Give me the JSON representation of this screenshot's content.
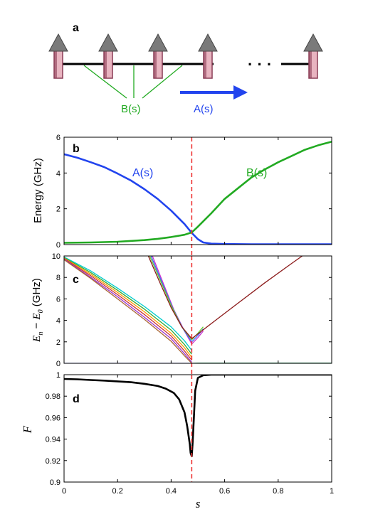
{
  "panels": {
    "a": {
      "label": "a",
      "coupling_label": "B(s)",
      "field_label": "A(s)",
      "ellipsis": "· · ·",
      "colors": {
        "coupling": "#22aa22",
        "field": "#2244ee",
        "arrow_body": "#e8b4c0",
        "arrow_shade": "#8a3c55"
      }
    }
  },
  "chart_data": [
    {
      "panel": "b",
      "type": "line",
      "title": "",
      "xlabel": "",
      "ylabel": "Energy (GHz)",
      "xlim": [
        0,
        1
      ],
      "ylim": [
        0,
        6
      ],
      "x_ticks": [],
      "y_ticks": [
        0,
        2,
        4,
        6
      ],
      "vline": {
        "x": 0.477,
        "color": "#ee3333",
        "style": "dashed"
      },
      "annotations": [
        {
          "text": "A(s)",
          "color": "#2244ee"
        },
        {
          "text": "B(s)",
          "color": "#22aa22"
        }
      ],
      "series": [
        {
          "name": "A(s)",
          "color": "#2244ee",
          "x": [
            0,
            0.05,
            0.1,
            0.15,
            0.2,
            0.25,
            0.3,
            0.35,
            0.4,
            0.45,
            0.477,
            0.5,
            0.52,
            0.55,
            0.6,
            0.7,
            0.8,
            0.9,
            1.0
          ],
          "y": [
            5.05,
            4.85,
            4.6,
            4.33,
            3.97,
            3.58,
            3.1,
            2.55,
            1.9,
            1.15,
            0.65,
            0.3,
            0.12,
            0.05,
            0.03,
            0.02,
            0.02,
            0.02,
            0.02
          ]
        },
        {
          "name": "B(s)",
          "color": "#22aa22",
          "x": [
            0,
            0.1,
            0.2,
            0.3,
            0.35,
            0.4,
            0.45,
            0.477,
            0.5,
            0.55,
            0.6,
            0.65,
            0.7,
            0.75,
            0.8,
            0.85,
            0.9,
            0.95,
            1.0
          ],
          "y": [
            0.1,
            0.12,
            0.16,
            0.25,
            0.32,
            0.42,
            0.55,
            0.68,
            1.0,
            1.75,
            2.55,
            3.15,
            3.75,
            4.2,
            4.6,
            4.95,
            5.3,
            5.55,
            5.75
          ]
        }
      ]
    },
    {
      "panel": "c",
      "type": "line",
      "title": "",
      "xlabel": "",
      "ylabel": "E_n − E_0 (GHz)",
      "ylabel_parts": {
        "E1": "E",
        "sub1": "n",
        "minus": " − ",
        "E2": "E",
        "sub2": "0",
        "unit": "(GHz)"
      },
      "xlim": [
        0,
        1
      ],
      "ylim": [
        0,
        10
      ],
      "x_ticks": [],
      "y_ticks": [
        0,
        2,
        4,
        6,
        8,
        10
      ],
      "vline": {
        "x": 0.477,
        "color": "#ee3333",
        "style": "dashed"
      },
      "series": [
        {
          "color": "#00cccc",
          "x": [
            0,
            0.1,
            0.2,
            0.3,
            0.4,
            0.45,
            0.477
          ],
          "y": [
            9.9,
            8.6,
            7.0,
            5.3,
            3.4,
            2.1,
            1.2
          ]
        },
        {
          "color": "#33aa33",
          "x": [
            0,
            0.1,
            0.2,
            0.3,
            0.4,
            0.45,
            0.477
          ],
          "y": [
            9.85,
            8.45,
            6.8,
            5.05,
            3.1,
            1.75,
            0.85
          ]
        },
        {
          "color": "#ff9900",
          "x": [
            0,
            0.1,
            0.2,
            0.3,
            0.4,
            0.45,
            0.477
          ],
          "y": [
            9.8,
            8.3,
            6.6,
            4.8,
            2.8,
            1.45,
            0.55
          ]
        },
        {
          "color": "#cc3333",
          "x": [
            0,
            0.1,
            0.2,
            0.3,
            0.4,
            0.45,
            0.477
          ],
          "y": [
            9.75,
            8.15,
            6.4,
            4.55,
            2.55,
            1.15,
            0.3
          ]
        },
        {
          "color": "#9933cc",
          "x": [
            0,
            0.1,
            0.2,
            0.3,
            0.4,
            0.45,
            0.477
          ],
          "y": [
            9.7,
            8.0,
            6.2,
            4.3,
            2.3,
            0.9,
            0.1
          ]
        },
        {
          "color": "#aa6633",
          "x": [
            0,
            0.1,
            0.2,
            0.3,
            0.4,
            0.45,
            0.477
          ],
          "y": [
            9.65,
            7.9,
            6.0,
            4.1,
            2.05,
            0.7,
            0.0
          ]
        },
        {
          "color": "#cc33cc",
          "x": [
            0.33,
            0.37,
            0.41,
            0.45,
            0.477,
            0.5,
            0.52
          ],
          "y": [
            10,
            7.5,
            5.0,
            3.0,
            1.8,
            2.4,
            3.0
          ]
        },
        {
          "color": "#3366ff",
          "x": [
            0.325,
            0.365,
            0.405,
            0.445,
            0.477,
            0.5,
            0.52
          ],
          "y": [
            10,
            7.6,
            5.2,
            3.2,
            2.0,
            2.6,
            3.2
          ]
        },
        {
          "color": "#66cc33",
          "x": [
            0.32,
            0.36,
            0.4,
            0.44,
            0.477,
            0.5,
            0.52
          ],
          "y": [
            10,
            7.7,
            5.4,
            3.4,
            2.2,
            2.8,
            3.4
          ]
        },
        {
          "color": "#8b1a1a",
          "x": [
            0.315,
            0.36,
            0.4,
            0.44,
            0.477,
            0.55,
            0.65,
            0.75,
            0.85,
            0.89
          ],
          "y": [
            10,
            7.4,
            5.2,
            3.4,
            2.3,
            3.7,
            5.6,
            7.5,
            9.3,
            10
          ]
        },
        {
          "color": "#22aa22",
          "x": [
            0.477,
            0.5,
            0.6,
            0.8,
            1.0
          ],
          "y": [
            0.0,
            0.02,
            0.02,
            0.02,
            0.02
          ]
        },
        {
          "color": "#2244ee",
          "x": [
            0,
            0.2,
            0.4,
            0.477,
            0.6,
            0.8,
            1.0
          ],
          "y": [
            0.0,
            0.0,
            0.0,
            0.0,
            0.0,
            0.0,
            0.0
          ]
        }
      ]
    },
    {
      "panel": "d",
      "type": "line",
      "title": "",
      "xlabel": "s",
      "ylabel": "F",
      "xlim": [
        0,
        1
      ],
      "ylim": [
        0.9,
        1.0
      ],
      "x_ticks": [
        0,
        0.2,
        0.4,
        0.6,
        0.8,
        1
      ],
      "x_tick_labels": [
        "0",
        "0.2",
        "0.4",
        "0.6",
        "0.8",
        "1"
      ],
      "y_ticks": [
        0.9,
        0.92,
        0.94,
        0.96,
        0.98,
        1
      ],
      "y_tick_labels": [
        "0.9",
        "0.92",
        "0.94",
        "0.96",
        "0.98",
        "1"
      ],
      "vline": {
        "x": 0.477,
        "color": "#ee3333",
        "style": "dashed"
      },
      "series": [
        {
          "color": "#000000",
          "x": [
            0,
            0.05,
            0.1,
            0.15,
            0.2,
            0.25,
            0.3,
            0.35,
            0.38,
            0.41,
            0.43,
            0.45,
            0.46,
            0.47,
            0.473,
            0.477,
            0.48,
            0.485,
            0.49,
            0.5,
            0.52,
            0.55,
            0.6,
            0.7,
            0.8,
            0.9,
            1.0
          ],
          "y": [
            0.996,
            0.9957,
            0.995,
            0.9945,
            0.9938,
            0.993,
            0.9915,
            0.9895,
            0.987,
            0.983,
            0.977,
            0.965,
            0.952,
            0.935,
            0.927,
            0.924,
            0.935,
            0.96,
            0.985,
            0.997,
            0.9995,
            1.0,
            1.0,
            1.0,
            1.0,
            1.0,
            1.0
          ]
        }
      ]
    }
  ]
}
